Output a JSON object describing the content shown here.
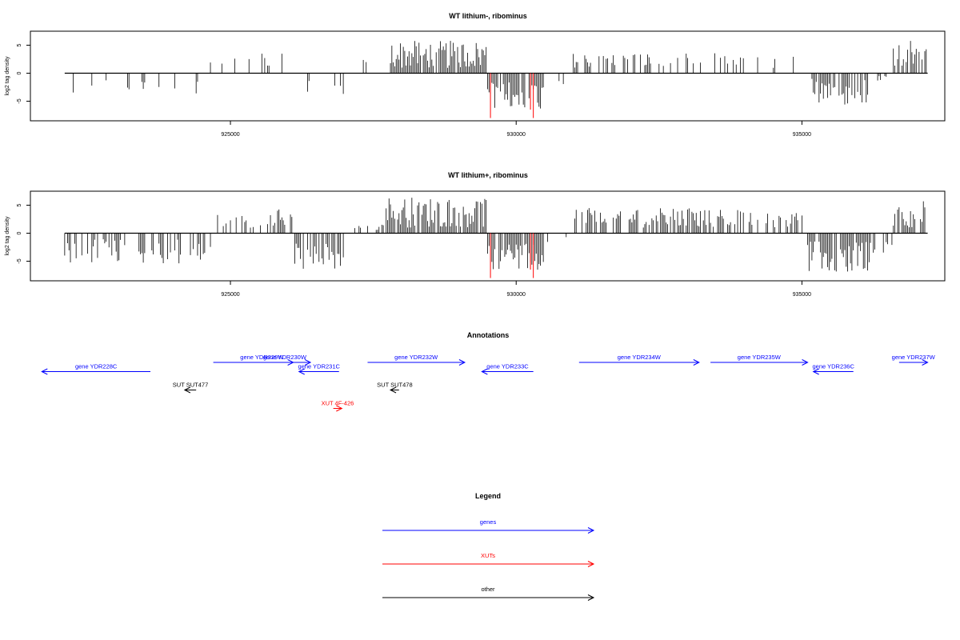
{
  "colors": {
    "genes": "#0000ff",
    "xuts": "#ff0000",
    "other": "#000000",
    "axis": "#000000"
  },
  "chart_data": [
    {
      "type": "bar",
      "title": "WT lithium-, ribominus",
      "ylabel": "log2 tag density",
      "xlim": [
        921500,
        937500
      ],
      "ylim": [
        -8.5,
        7.5
      ],
      "xticks": [
        925000,
        930000,
        935000
      ],
      "xtick_labels": [
        "925000",
        "930000",
        "935000"
      ],
      "yticks": [
        -5,
        0,
        5
      ],
      "ytick_labels": [
        "-5",
        "0",
        "5"
      ],
      "data_start": 922100,
      "data_end": 937200,
      "bin_size": 25,
      "segments": [
        {
          "from": 922100,
          "to": 924600,
          "sign": -1,
          "min": 0.8,
          "max": 3.8,
          "density": 0.18
        },
        {
          "from": 924600,
          "to": 926200,
          "sign": 1,
          "min": 1.0,
          "max": 3.8,
          "density": 0.2
        },
        {
          "from": 926200,
          "to": 927100,
          "sign": -1,
          "min": 1.0,
          "max": 4.0,
          "density": 0.18
        },
        {
          "from": 927100,
          "to": 927800,
          "sign": 1,
          "min": 1.0,
          "max": 2.5,
          "density": 0.12
        },
        {
          "from": 927800,
          "to": 929500,
          "sign": 1,
          "min": 0.8,
          "max": 5.8,
          "density": 0.85
        },
        {
          "from": 929500,
          "to": 930500,
          "sign": -1,
          "min": 1.5,
          "max": 6.5,
          "density": 0.9
        },
        {
          "from": 930500,
          "to": 931000,
          "sign": -1,
          "min": 0.5,
          "max": 2.0,
          "density": 0.1
        },
        {
          "from": 931000,
          "to": 934000,
          "sign": 1,
          "min": 1.0,
          "max": 3.6,
          "density": 0.38
        },
        {
          "from": 934000,
          "to": 935100,
          "sign": 1,
          "min": 0.8,
          "max": 3.0,
          "density": 0.2
        },
        {
          "from": 935100,
          "to": 936200,
          "sign": -1,
          "min": 1.0,
          "max": 6.0,
          "density": 0.55
        },
        {
          "from": 936200,
          "to": 936600,
          "sign": -1,
          "min": 0.5,
          "max": 2.0,
          "density": 0.15
        },
        {
          "from": 936600,
          "to": 937200,
          "sign": 1,
          "min": 1.0,
          "max": 6.0,
          "density": 0.7
        }
      ],
      "red_bars": [
        {
          "x": 929550,
          "value": -8.0
        },
        {
          "x": 930300,
          "value": -8.0
        },
        {
          "x": 930250,
          "value": -6.5
        }
      ]
    },
    {
      "type": "bar",
      "title": "WT lithium+, ribominus",
      "ylabel": "log2 tag density",
      "xlim": [
        921500,
        937500
      ],
      "ylim": [
        -8.5,
        7.5
      ],
      "xticks": [
        925000,
        930000,
        935000
      ],
      "xtick_labels": [
        "925000",
        "930000",
        "935000"
      ],
      "yticks": [
        -5,
        0,
        5
      ],
      "ytick_labels": [
        "-5",
        "0",
        "5"
      ],
      "data_start": 922100,
      "data_end": 937200,
      "bin_size": 25,
      "segments": [
        {
          "from": 922100,
          "to": 924700,
          "sign": -1,
          "min": 1.0,
          "max": 5.5,
          "density": 0.45
        },
        {
          "from": 924700,
          "to": 926100,
          "sign": 1,
          "min": 1.0,
          "max": 4.5,
          "density": 0.5
        },
        {
          "from": 926100,
          "to": 927000,
          "sign": -1,
          "min": 1.5,
          "max": 6.5,
          "density": 0.7
        },
        {
          "from": 927000,
          "to": 927700,
          "sign": 1,
          "min": 0.5,
          "max": 2.0,
          "density": 0.15
        },
        {
          "from": 927700,
          "to": 929500,
          "sign": 1,
          "min": 1.0,
          "max": 6.5,
          "density": 0.9
        },
        {
          "from": 929500,
          "to": 930500,
          "sign": -1,
          "min": 1.5,
          "max": 6.5,
          "density": 0.9
        },
        {
          "from": 930500,
          "to": 931000,
          "sign": -1,
          "min": 0.5,
          "max": 2.0,
          "density": 0.1
        },
        {
          "from": 931000,
          "to": 934100,
          "sign": 1,
          "min": 1.0,
          "max": 4.5,
          "density": 0.65
        },
        {
          "from": 934100,
          "to": 935100,
          "sign": 1,
          "min": 1.0,
          "max": 4.0,
          "density": 0.45
        },
        {
          "from": 935100,
          "to": 936300,
          "sign": -1,
          "min": 1.5,
          "max": 7.0,
          "density": 0.8
        },
        {
          "from": 936300,
          "to": 936600,
          "sign": -1,
          "min": 0.5,
          "max": 3.5,
          "density": 0.3
        },
        {
          "from": 936600,
          "to": 937200,
          "sign": 1,
          "min": 1.0,
          "max": 6.0,
          "density": 0.75
        }
      ],
      "red_bars": [
        {
          "x": 929550,
          "value": -8.0
        },
        {
          "x": 930300,
          "value": -8.0
        },
        {
          "x": 930250,
          "value": -6.5
        }
      ]
    }
  ],
  "annotations": {
    "title": "Annotations",
    "xlim": [
      921500,
      937500
    ],
    "features": [
      {
        "label": "gene YDR228C",
        "category": "genes",
        "start": 921700,
        "end": 923600,
        "strand": "-",
        "row": 1
      },
      {
        "label": "gene YDR229W",
        "category": "genes",
        "start": 924700,
        "end": 926400,
        "strand": "+",
        "row": 0
      },
      {
        "label": "gene YDR230W",
        "category": "genes",
        "start": 925800,
        "end": 926100,
        "strand": "+",
        "row": 0
      },
      {
        "label": "gene YDR231C",
        "category": "genes",
        "start": 926200,
        "end": 926900,
        "strand": "-",
        "row": 1
      },
      {
        "label": "gene YDR232W",
        "category": "genes",
        "start": 927400,
        "end": 929100,
        "strand": "+",
        "row": 0
      },
      {
        "label": "gene YDR233C",
        "category": "genes",
        "start": 929400,
        "end": 930300,
        "strand": "-",
        "row": 1
      },
      {
        "label": "gene YDR234W",
        "category": "genes",
        "start": 931100,
        "end": 933200,
        "strand": "+",
        "row": 0
      },
      {
        "label": "gene YDR235W",
        "category": "genes",
        "start": 933400,
        "end": 935100,
        "strand": "+",
        "row": 0
      },
      {
        "label": "gene YDR236C",
        "category": "genes",
        "start": 935200,
        "end": 935900,
        "strand": "-",
        "row": 1
      },
      {
        "label": "gene YDR237W",
        "category": "genes",
        "start": 936700,
        "end": 937200,
        "strand": "+",
        "row": 0
      },
      {
        "label": "SUT SUT477",
        "category": "other",
        "start": 924200,
        "end": 924400,
        "strand": "-",
        "row": 3
      },
      {
        "label": "SUT SUT478",
        "category": "other",
        "start": 927800,
        "end": 927950,
        "strand": "-",
        "row": 3
      },
      {
        "label": "XUT 4F-426",
        "category": "xuts",
        "start": 926800,
        "end": 926950,
        "strand": "+",
        "row": 5
      }
    ]
  },
  "legend": {
    "title": "Legend",
    "items": [
      {
        "label": "genes",
        "category": "genes"
      },
      {
        "label": "XUTs",
        "category": "xuts"
      },
      {
        "label": "other",
        "category": "other"
      }
    ]
  }
}
